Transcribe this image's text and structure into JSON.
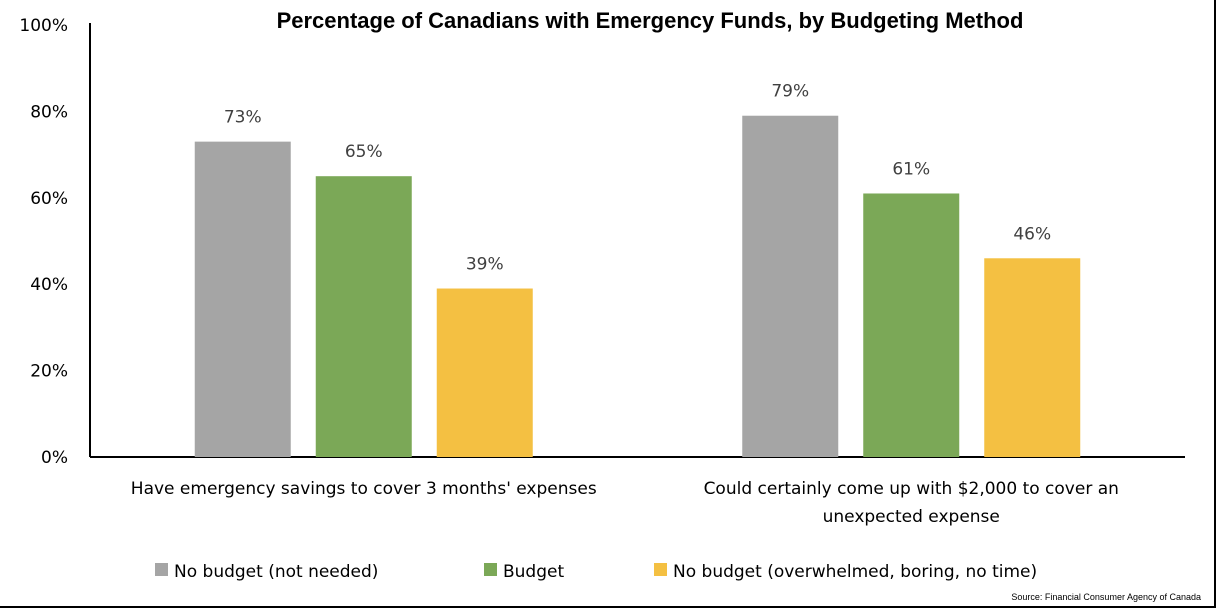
{
  "chart_data": {
    "type": "bar",
    "title": "Percentage of Canadians with Emergency Funds, by Budgeting Method",
    "categories": [
      [
        "Have emergency savings to cover 3 months' expenses"
      ],
      [
        "Could certainly come up with $2,000 to cover an",
        "unexpected expense"
      ]
    ],
    "series": [
      {
        "name": "No budget (not needed)",
        "color": "#A5A5A5",
        "values": [
          73,
          79
        ],
        "labels": [
          "73%",
          "79%"
        ]
      },
      {
        "name": "Budget",
        "color": "#7BA857",
        "values": [
          65,
          61
        ],
        "labels": [
          "65%",
          "61%"
        ]
      },
      {
        "name": "No budget (overwhelmed, boring, no time)",
        "color": "#F4C042",
        "values": [
          39,
          46
        ],
        "labels": [
          "39%",
          "46%"
        ]
      }
    ],
    "ylim": [
      0,
      100
    ],
    "yticks": [
      0,
      20,
      40,
      60,
      80,
      100
    ],
    "ytick_labels": [
      "0%",
      "20%",
      "40%",
      "60%",
      "80%",
      "100%"
    ],
    "xlabel": "",
    "ylabel": "",
    "grid": false,
    "legend_position": "bottom",
    "source": "Source: Financial Consumer Agency of Canada"
  }
}
